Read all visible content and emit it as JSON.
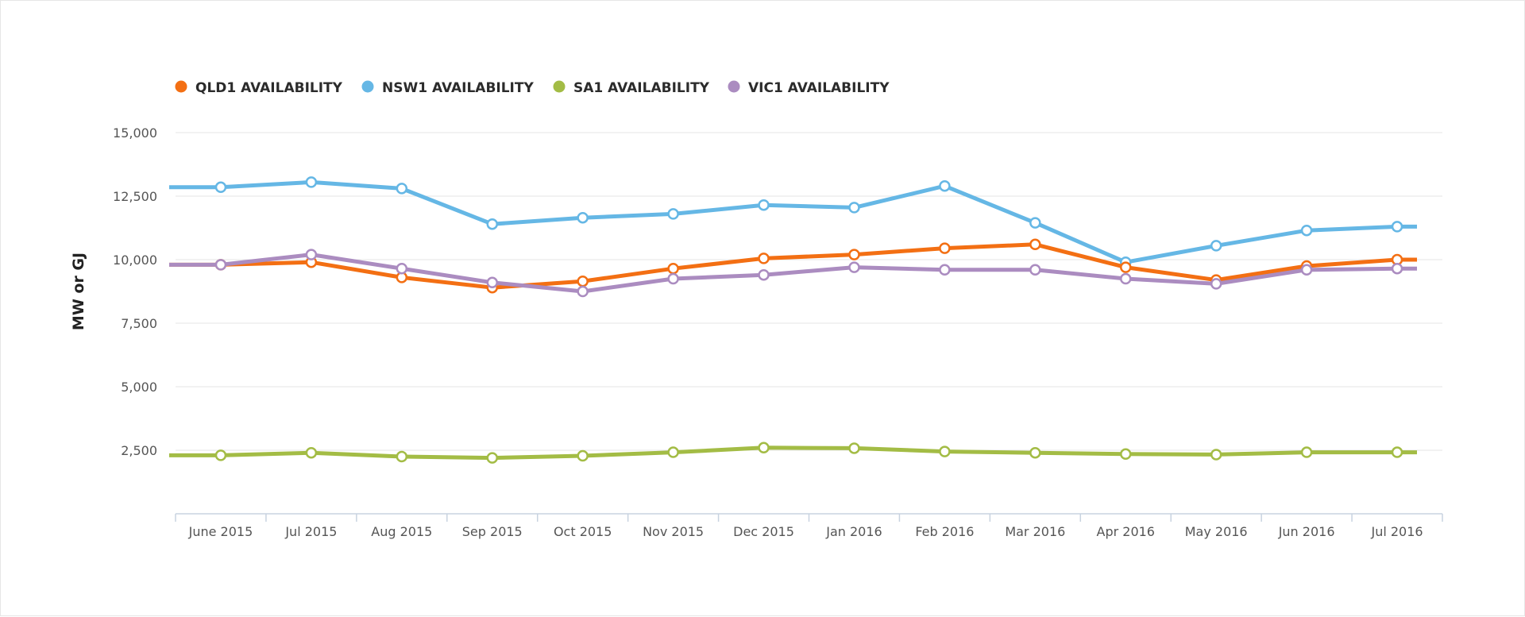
{
  "chart_data": {
    "type": "line",
    "title": "",
    "xlabel": "",
    "ylabel": "MW or GJ",
    "ylim": [
      0,
      15000
    ],
    "y_ticks": [
      2500,
      5000,
      7500,
      10000,
      12500,
      15000
    ],
    "y_tick_labels": [
      "2,500",
      "5,000",
      "7,500",
      "10,000",
      "12,500",
      "15,000"
    ],
    "grid": true,
    "legend_position": "top-left",
    "categories": [
      "June 2015",
      "Jul 2015",
      "Aug 2015",
      "Sep 2015",
      "Oct 2015",
      "Nov 2015",
      "Dec 2015",
      "Jan 2016",
      "Feb 2016",
      "Mar 2016",
      "Apr 2016",
      "May 2016",
      "Jun 2016",
      "Jul 2016"
    ],
    "series": [
      {
        "name": "QLD1 AVAILABILITY",
        "color": "#f36f13",
        "values": [
          9800,
          9900,
          9300,
          8900,
          9150,
          9650,
          10050,
          10200,
          10450,
          10600,
          9700,
          9200,
          9750,
          10000
        ]
      },
      {
        "name": "NSW1 AVAILABILITY",
        "color": "#65b7e5",
        "values": [
          12850,
          13050,
          12800,
          11400,
          11650,
          11800,
          12150,
          12050,
          12900,
          11450,
          9900,
          10550,
          11150,
          11300
        ]
      },
      {
        "name": "SA1 AVAILABILITY",
        "color": "#a3bc45",
        "values": [
          2300,
          2400,
          2250,
          2200,
          2280,
          2420,
          2600,
          2580,
          2450,
          2400,
          2350,
          2330,
          2420,
          2420
        ]
      },
      {
        "name": "VIC1 AVAILABILITY",
        "color": "#ab8cc0",
        "values": [
          9800,
          10200,
          9650,
          9100,
          8750,
          9250,
          9400,
          9700,
          9600,
          9600,
          9250,
          9050,
          9600,
          9650
        ]
      }
    ]
  }
}
